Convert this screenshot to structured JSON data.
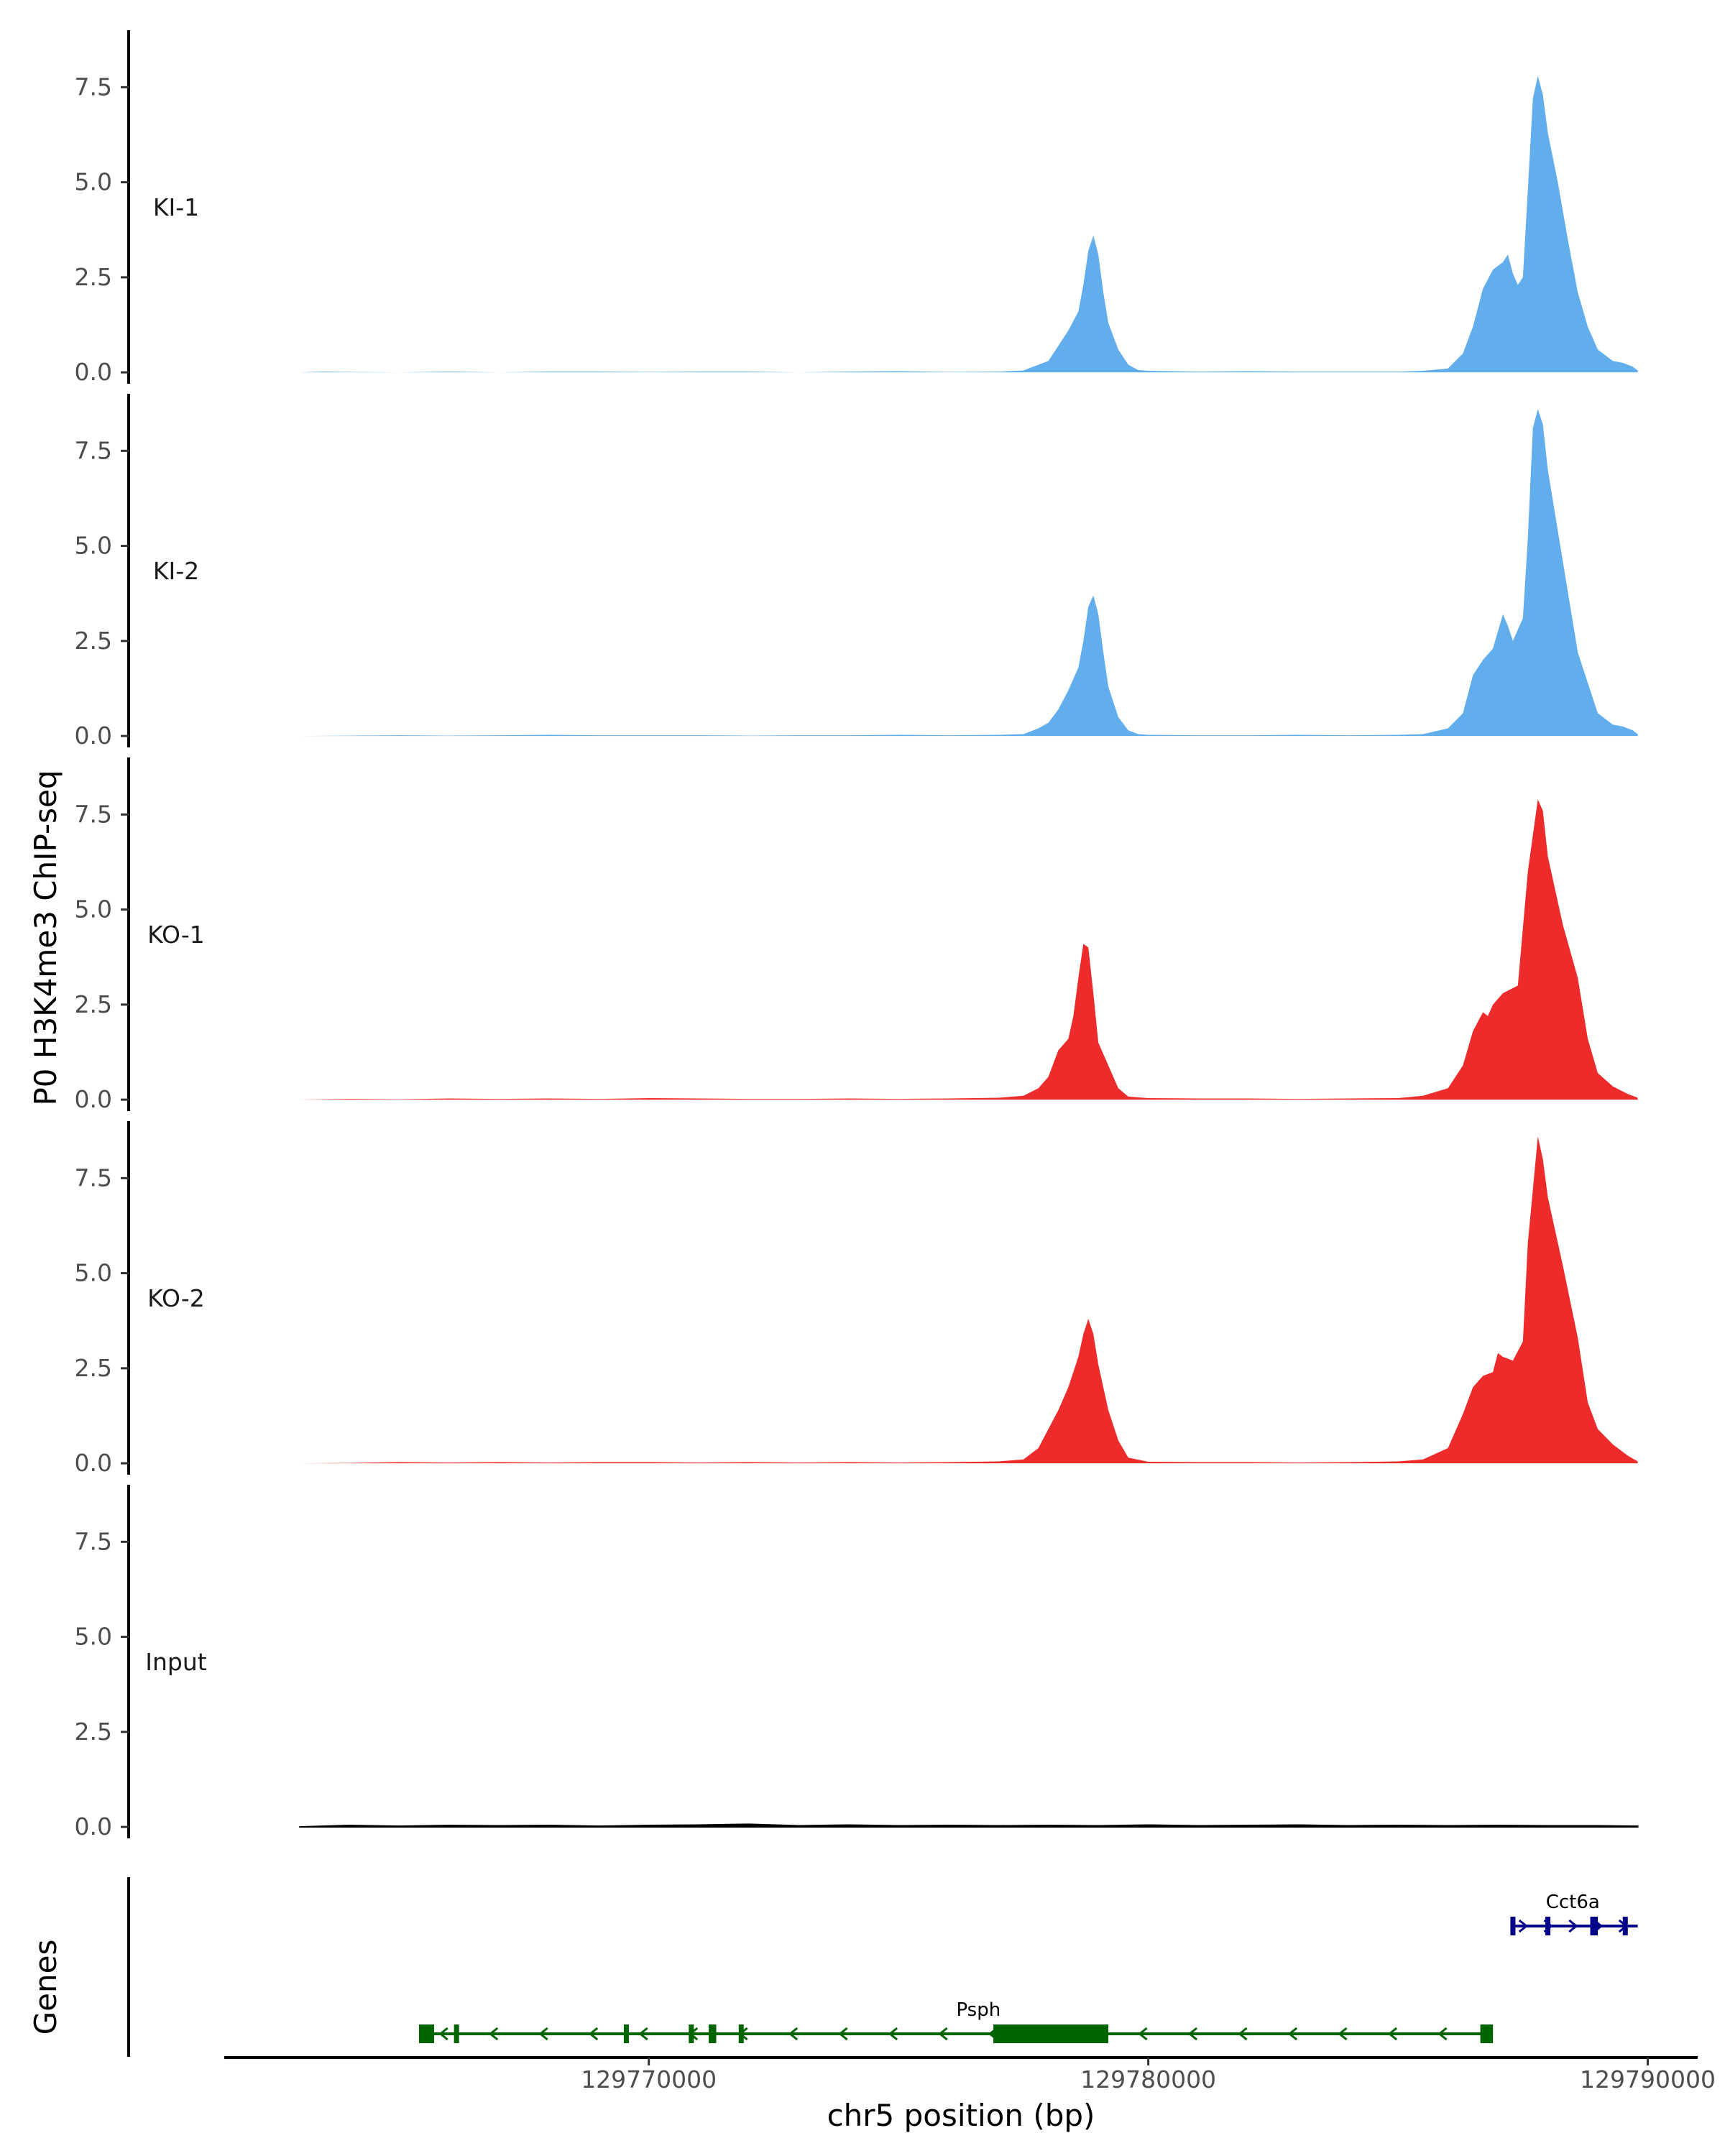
{
  "chart_data": {
    "type": "area",
    "ylabel": "P0 H3K4me3 ChIP-seq",
    "xlabel": "chr5 position (bp)",
    "genes_label": "Genes",
    "x_axis": {
      "ticks": [
        129770000,
        129780000,
        129790000
      ],
      "tick_labels": [
        "129770000",
        "129780000",
        "129790000"
      ],
      "range": [
        129761500,
        129791000
      ]
    },
    "y_axis": {
      "ticks": [
        0.0,
        2.5,
        5.0,
        7.5
      ],
      "tick_labels": [
        "0.0",
        "2.5",
        "5.0",
        "7.5"
      ],
      "range": [
        -0.3,
        9.0
      ]
    },
    "colors": {
      "KI": "#62aeed",
      "KO": "#ee2b2b",
      "Input": "#000000",
      "Psph": "#006400",
      "Cct6a": "#00008b"
    },
    "series": [
      {
        "name": "KI-1",
        "color": "#62aeed",
        "points": [
          [
            129763000,
            0
          ],
          [
            129763500,
            0.02
          ],
          [
            129764000,
            0.01
          ],
          [
            129765000,
            0
          ],
          [
            129766000,
            0.02
          ],
          [
            129767000,
            0
          ],
          [
            129768000,
            0.02
          ],
          [
            129769000,
            0.02
          ],
          [
            129770000,
            0.01
          ],
          [
            129771000,
            0.02
          ],
          [
            129772000,
            0.02
          ],
          [
            129773000,
            0
          ],
          [
            129774000,
            0.02
          ],
          [
            129775000,
            0.03
          ],
          [
            129776000,
            0.01
          ],
          [
            129777000,
            0.02
          ],
          [
            129777500,
            0.05
          ],
          [
            129777800,
            0.2
          ],
          [
            129778000,
            0.3
          ],
          [
            129778200,
            0.7
          ],
          [
            129778400,
            1.1
          ],
          [
            129778600,
            1.6
          ],
          [
            129778700,
            2.3
          ],
          [
            129778800,
            3.2
          ],
          [
            129778900,
            3.6
          ],
          [
            129779000,
            3.1
          ],
          [
            129779100,
            2.1
          ],
          [
            129779200,
            1.3
          ],
          [
            129779400,
            0.6
          ],
          [
            129779600,
            0.2
          ],
          [
            129779800,
            0.06
          ],
          [
            129780000,
            0.04
          ],
          [
            129781000,
            0.02
          ],
          [
            129782000,
            0.03
          ],
          [
            129783000,
            0.02
          ],
          [
            129784000,
            0.02
          ],
          [
            129785000,
            0.02
          ],
          [
            129785500,
            0.04
          ],
          [
            129786000,
            0.1
          ],
          [
            129786300,
            0.5
          ],
          [
            129786500,
            1.2
          ],
          [
            129786700,
            2.2
          ],
          [
            129786900,
            2.7
          ],
          [
            129787100,
            2.9
          ],
          [
            129787200,
            3.1
          ],
          [
            129787300,
            2.6
          ],
          [
            129787400,
            2.3
          ],
          [
            129787500,
            2.5
          ],
          [
            129787600,
            4.8
          ],
          [
            129787700,
            7.2
          ],
          [
            129787800,
            7.8
          ],
          [
            129787900,
            7.3
          ],
          [
            129788000,
            6.3
          ],
          [
            129788200,
            5.0
          ],
          [
            129788400,
            3.5
          ],
          [
            129788600,
            2.1
          ],
          [
            129788800,
            1.2
          ],
          [
            129789000,
            0.6
          ],
          [
            129789300,
            0.3
          ],
          [
            129789500,
            0.25
          ],
          [
            129789700,
            0.15
          ],
          [
            129789800,
            0.05
          ]
        ]
      },
      {
        "name": "KI-2",
        "color": "#62aeed",
        "points": [
          [
            129763000,
            0
          ],
          [
            129764000,
            0.01
          ],
          [
            129765000,
            0.02
          ],
          [
            129766000,
            0.01
          ],
          [
            129767000,
            0.02
          ],
          [
            129768000,
            0.03
          ],
          [
            129769000,
            0.02
          ],
          [
            129770000,
            0.02
          ],
          [
            129771000,
            0.02
          ],
          [
            129772000,
            0.01
          ],
          [
            129773000,
            0.02
          ],
          [
            129774000,
            0.02
          ],
          [
            129775000,
            0.03
          ],
          [
            129776000,
            0.02
          ],
          [
            129777000,
            0.03
          ],
          [
            129777500,
            0.05
          ],
          [
            129777800,
            0.2
          ],
          [
            129778000,
            0.35
          ],
          [
            129778200,
            0.7
          ],
          [
            129778400,
            1.2
          ],
          [
            129778600,
            1.8
          ],
          [
            129778700,
            2.5
          ],
          [
            129778800,
            3.4
          ],
          [
            129778900,
            3.7
          ],
          [
            129779000,
            3.2
          ],
          [
            129779100,
            2.2
          ],
          [
            129779200,
            1.3
          ],
          [
            129779400,
            0.5
          ],
          [
            129779600,
            0.15
          ],
          [
            129779800,
            0.05
          ],
          [
            129780000,
            0.03
          ],
          [
            129781000,
            0.02
          ],
          [
            129782000,
            0.02
          ],
          [
            129783000,
            0.03
          ],
          [
            129784000,
            0.02
          ],
          [
            129785000,
            0.03
          ],
          [
            129785500,
            0.05
          ],
          [
            129786000,
            0.2
          ],
          [
            129786300,
            0.6
          ],
          [
            129786500,
            1.6
          ],
          [
            129786700,
            2.0
          ],
          [
            129786900,
            2.3
          ],
          [
            129787100,
            3.2
          ],
          [
            129787200,
            2.9
          ],
          [
            129787300,
            2.5
          ],
          [
            129787500,
            3.1
          ],
          [
            129787600,
            5.2
          ],
          [
            129787700,
            8.1
          ],
          [
            129787800,
            8.6
          ],
          [
            129787900,
            8.2
          ],
          [
            129788000,
            7.0
          ],
          [
            129788200,
            5.4
          ],
          [
            129788400,
            3.8
          ],
          [
            129788600,
            2.2
          ],
          [
            129788800,
            1.4
          ],
          [
            129789000,
            0.6
          ],
          [
            129789300,
            0.3
          ],
          [
            129789500,
            0.25
          ],
          [
            129789700,
            0.15
          ],
          [
            129789800,
            0.05
          ]
        ]
      },
      {
        "name": "KO-1",
        "color": "#ee2b2b",
        "points": [
          [
            129763000,
            0
          ],
          [
            129764000,
            0.02
          ],
          [
            129765000,
            0.01
          ],
          [
            129766000,
            0.03
          ],
          [
            129767000,
            0.02
          ],
          [
            129768000,
            0.03
          ],
          [
            129769000,
            0.02
          ],
          [
            129770000,
            0.04
          ],
          [
            129771000,
            0.03
          ],
          [
            129772000,
            0.02
          ],
          [
            129773000,
            0.02
          ],
          [
            129774000,
            0.03
          ],
          [
            129775000,
            0.02
          ],
          [
            129776000,
            0.03
          ],
          [
            129777000,
            0.05
          ],
          [
            129777500,
            0.1
          ],
          [
            129777800,
            0.3
          ],
          [
            129778000,
            0.6
          ],
          [
            129778200,
            1.3
          ],
          [
            129778400,
            1.6
          ],
          [
            129778500,
            2.2
          ],
          [
            129778600,
            3.2
          ],
          [
            129778700,
            4.1
          ],
          [
            129778800,
            4.0
          ],
          [
            129778900,
            2.8
          ],
          [
            129779000,
            1.5
          ],
          [
            129779200,
            0.9
          ],
          [
            129779400,
            0.3
          ],
          [
            129779600,
            0.08
          ],
          [
            129780000,
            0.04
          ],
          [
            129781000,
            0.03
          ],
          [
            129782000,
            0.03
          ],
          [
            129783000,
            0.02
          ],
          [
            129784000,
            0.03
          ],
          [
            129785000,
            0.04
          ],
          [
            129785500,
            0.1
          ],
          [
            129786000,
            0.3
          ],
          [
            129786300,
            0.9
          ],
          [
            129786500,
            1.8
          ],
          [
            129786700,
            2.3
          ],
          [
            129786800,
            2.2
          ],
          [
            129786900,
            2.5
          ],
          [
            129787100,
            2.8
          ],
          [
            129787400,
            3.0
          ],
          [
            129787600,
            6.0
          ],
          [
            129787800,
            7.9
          ],
          [
            129787900,
            7.6
          ],
          [
            129788000,
            6.4
          ],
          [
            129788300,
            4.6
          ],
          [
            129788600,
            3.2
          ],
          [
            129788800,
            1.6
          ],
          [
            129789000,
            0.7
          ],
          [
            129789300,
            0.35
          ],
          [
            129789600,
            0.15
          ],
          [
            129789800,
            0.05
          ]
        ]
      },
      {
        "name": "KO-2",
        "color": "#ee2b2b",
        "points": [
          [
            129763000,
            0
          ],
          [
            129764000,
            0.01
          ],
          [
            129765000,
            0.03
          ],
          [
            129766000,
            0.02
          ],
          [
            129767000,
            0.03
          ],
          [
            129768000,
            0.02
          ],
          [
            129769000,
            0.03
          ],
          [
            129770000,
            0.03
          ],
          [
            129771000,
            0.02
          ],
          [
            129772000,
            0.03
          ],
          [
            129773000,
            0.02
          ],
          [
            129774000,
            0.03
          ],
          [
            129775000,
            0.02
          ],
          [
            129776000,
            0.03
          ],
          [
            129777000,
            0.05
          ],
          [
            129777500,
            0.1
          ],
          [
            129777800,
            0.4
          ],
          [
            129778000,
            0.9
          ],
          [
            129778200,
            1.4
          ],
          [
            129778400,
            2.0
          ],
          [
            129778600,
            2.8
          ],
          [
            129778700,
            3.4
          ],
          [
            129778800,
            3.8
          ],
          [
            129778900,
            3.4
          ],
          [
            129779000,
            2.6
          ],
          [
            129779200,
            1.4
          ],
          [
            129779400,
            0.6
          ],
          [
            129779600,
            0.15
          ],
          [
            129780000,
            0.04
          ],
          [
            129781000,
            0.03
          ],
          [
            129782000,
            0.03
          ],
          [
            129783000,
            0.02
          ],
          [
            129784000,
            0.03
          ],
          [
            129785000,
            0.05
          ],
          [
            129785500,
            0.1
          ],
          [
            129786000,
            0.4
          ],
          [
            129786300,
            1.3
          ],
          [
            129786500,
            2.0
          ],
          [
            129786700,
            2.3
          ],
          [
            129786900,
            2.4
          ],
          [
            129787000,
            2.9
          ],
          [
            129787100,
            2.8
          ],
          [
            129787300,
            2.7
          ],
          [
            129787500,
            3.2
          ],
          [
            129787600,
            5.8
          ],
          [
            129787700,
            7.2
          ],
          [
            129787800,
            8.6
          ],
          [
            129787900,
            8.0
          ],
          [
            129788000,
            7.0
          ],
          [
            129788300,
            5.2
          ],
          [
            129788600,
            3.3
          ],
          [
            129788800,
            1.6
          ],
          [
            129789000,
            0.9
          ],
          [
            129789300,
            0.5
          ],
          [
            129789600,
            0.2
          ],
          [
            129789800,
            0.05
          ]
        ]
      },
      {
        "name": "Input",
        "color": "#000000",
        "points": [
          [
            129763000,
            0
          ],
          [
            129764000,
            0.04
          ],
          [
            129765000,
            0.02
          ],
          [
            129766000,
            0.04
          ],
          [
            129767000,
            0.03
          ],
          [
            129768000,
            0.04
          ],
          [
            129769000,
            0.02
          ],
          [
            129770000,
            0.04
          ],
          [
            129771000,
            0.05
          ],
          [
            129772000,
            0.07
          ],
          [
            129773000,
            0.03
          ],
          [
            129774000,
            0.05
          ],
          [
            129775000,
            0.03
          ],
          [
            129776000,
            0.04
          ],
          [
            129777000,
            0.03
          ],
          [
            129778000,
            0.04
          ],
          [
            129779000,
            0.03
          ],
          [
            129780000,
            0.05
          ],
          [
            129781000,
            0.03
          ],
          [
            129782000,
            0.04
          ],
          [
            129783000,
            0.05
          ],
          [
            129784000,
            0.03
          ],
          [
            129785000,
            0.04
          ],
          [
            129786000,
            0.03
          ],
          [
            129787000,
            0.04
          ],
          [
            129788000,
            0.03
          ],
          [
            129789000,
            0.03
          ],
          [
            129789800,
            0.02
          ]
        ]
      }
    ],
    "genes": [
      {
        "name": "Psph",
        "strand": "-",
        "color": "#006400",
        "start": 129765400,
        "end": 129786900,
        "exons": [
          [
            129765400,
            129765700
          ],
          [
            129766100,
            129766200
          ],
          [
            129769500,
            129769600
          ],
          [
            129770800,
            129770900
          ],
          [
            129771200,
            129771350
          ],
          [
            129771800,
            129771900
          ],
          [
            129776900,
            129779200
          ],
          [
            129786650,
            129786900
          ]
        ],
        "thick_exons": [
          [
            129765400,
            129765700
          ],
          [
            129776900,
            129778950
          ],
          [
            129786650,
            129786900
          ]
        ]
      },
      {
        "name": "Cct6a",
        "strand": "+",
        "color": "#00008b",
        "start": 129787250,
        "end": 129789800,
        "exons": [
          [
            129787250,
            129787350
          ],
          [
            129787950,
            129788000
          ],
          [
            129788850,
            129789000
          ],
          [
            129789500,
            129789550
          ]
        ],
        "thick_exons": [
          [
            129788850,
            129789000
          ]
        ]
      }
    ]
  }
}
